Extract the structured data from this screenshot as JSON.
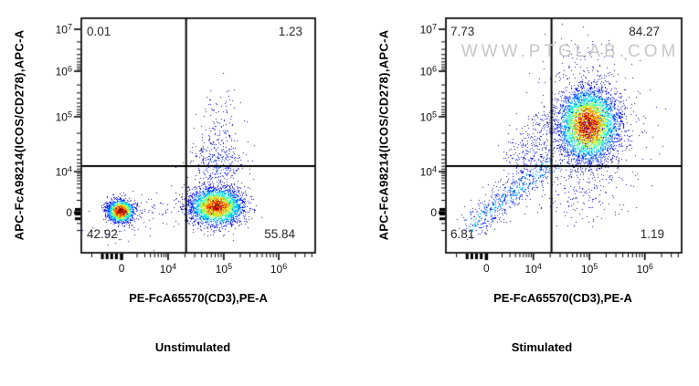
{
  "figure": {
    "watermark": "WWW.PTGLAB.COM",
    "background": "#ffffff",
    "colors": {
      "axis": "#000000",
      "tick_text": "#111111",
      "quadrant_text": "#2a2a2a",
      "watermark": "#c7c7c7",
      "density_scale": "jet (blue-cyan-green-yellow-red)"
    }
  },
  "chart_data": [
    {
      "type": "scatter",
      "title": "Unstimulated",
      "xlabel": "PE-FcA65570(CD3),PE-A",
      "ylabel": "APC-FcA98214(ICOS/CD278),APC-A",
      "x_scale": "biexponential 0 to ~5e6",
      "y_scale": "biexponential 0 to ~1.3e7",
      "x_ticks": [
        "0",
        "10^4",
        "10^5",
        "10^6"
      ],
      "y_ticks": [
        "10^7",
        "10^6",
        "10^5",
        "10^4",
        "0"
      ],
      "grid": false,
      "legend": false,
      "quadrant_stats": {
        "top_left": "0.01",
        "top_right": "1.23",
        "bottom_left": "42.92",
        "bottom_right": "55.84"
      },
      "populations": [
        {
          "name": "cd3neg-lymphocytes",
          "cx": 0.166,
          "cy": 0.822,
          "sx": 0.028,
          "sy": 0.024,
          "n": 1700,
          "heat": 1.05
        },
        {
          "name": "cd3pos-icosneg",
          "cx": 0.576,
          "cy": 0.801,
          "sx": 0.058,
          "sy": 0.04,
          "n": 3200,
          "heat": 0.9
        },
        {
          "name": "gate-line-scatter",
          "cx": 0.585,
          "cy": 0.62,
          "sx": 0.055,
          "sy": 0.05,
          "n": 300,
          "heat": 0.2
        },
        {
          "name": "icos-plume",
          "cx": 0.59,
          "cy": 0.46,
          "sx": 0.045,
          "sy": 0.075,
          "n": 130,
          "heat": 0.13
        },
        {
          "name": "bridge-debris",
          "cx": 0.37,
          "cy": 0.81,
          "sx": 0.13,
          "sy": 0.035,
          "n": 80,
          "heat": 0.1
        },
        {
          "name": "low-debris",
          "cx": 0.2,
          "cy": 0.9,
          "sx": 0.1,
          "sy": 0.06,
          "n": 40,
          "heat": 0.07
        }
      ]
    },
    {
      "type": "scatter",
      "title": "Stimulated",
      "xlabel": "PE-FcA65570(CD3),PE-A",
      "ylabel": "APC-FcA98214(ICOS/CD278),APC-A",
      "x_scale": "biexponential 0 to ~5e6",
      "y_scale": "biexponential 0 to ~1.3e7",
      "x_ticks": [
        "0",
        "10^4",
        "10^5",
        "10^6"
      ],
      "y_ticks": [
        "10^7",
        "10^6",
        "10^5",
        "10^4",
        "0"
      ],
      "grid": false,
      "legend": false,
      "quadrant_stats": {
        "top_left": "7.73",
        "top_right": "84.27",
        "bottom_left": "6.81",
        "bottom_right": "1.19"
      },
      "populations": [
        {
          "name": "icospos-cd3pos-main",
          "cx": 0.602,
          "cy": 0.455,
          "sx": 0.065,
          "sy": 0.08,
          "n": 4600,
          "heat": 0.9
        },
        {
          "name": "main-halo",
          "cx": 0.61,
          "cy": 0.47,
          "sx": 0.12,
          "sy": 0.13,
          "n": 350,
          "heat": 0.09
        },
        {
          "name": "diagonal-trail",
          "x1": 0.1,
          "y1": 0.89,
          "x2": 0.44,
          "y2": 0.615,
          "s": 0.032,
          "n": 700,
          "heat": 0.33
        },
        {
          "name": "upper-trail",
          "x1": 0.3,
          "y1": 0.62,
          "x2": 0.46,
          "y2": 0.42,
          "s": 0.05,
          "n": 260,
          "heat": 0.16
        },
        {
          "name": "lower-right-sparse",
          "cx": 0.57,
          "cy": 0.75,
          "sx": 0.09,
          "sy": 0.07,
          "n": 150,
          "heat": 0.09
        },
        {
          "name": "top-sparse",
          "cx": 0.59,
          "cy": 0.16,
          "sx": 0.09,
          "sy": 0.06,
          "n": 60,
          "heat": 0.07
        }
      ]
    }
  ]
}
